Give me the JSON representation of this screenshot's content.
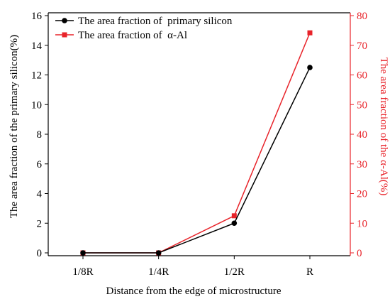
{
  "chart_data": {
    "type": "line",
    "categories": [
      "1/8R",
      "1/4R",
      "1/2R",
      "R"
    ],
    "xlabel": "Distance from the edge of microstructure",
    "y_left": {
      "label": "The area fraction of the primary silicon(%)",
      "ylim": [
        0,
        16
      ],
      "ticks": [
        0,
        2,
        4,
        6,
        8,
        10,
        12,
        14,
        16
      ],
      "color": "#000000"
    },
    "y_right": {
      "label": "The area fraction of the α-Al(%)",
      "ylim": [
        0,
        80
      ],
      "ticks": [
        0,
        10,
        20,
        30,
        40,
        50,
        60,
        70,
        80
      ],
      "color": "#e8232a"
    },
    "series": [
      {
        "name": "The area fraction of  primary silicon",
        "axis": "left",
        "marker": "circle",
        "color": "#000000",
        "values": [
          0,
          0,
          2.0,
          12.5
        ]
      },
      {
        "name": "The area fraction of  α-Al",
        "axis": "right",
        "marker": "square",
        "color": "#e8232a",
        "values": [
          0,
          0,
          12.5,
          74.2
        ]
      }
    ],
    "legend": "top-left",
    "grid": false
  }
}
